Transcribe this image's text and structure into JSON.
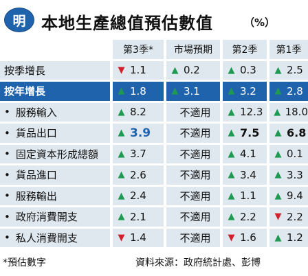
{
  "header": {
    "logo_text": "明",
    "title": "本地生產總值預估數值",
    "unit": "（%）"
  },
  "columns": [
    "第3季*",
    "市場預期",
    "第2季",
    "第1季"
  ],
  "rows": [
    {
      "label": "按季增長",
      "bullet": "",
      "highlight": false,
      "cells": [
        {
          "dir": "down",
          "value": "1.1"
        },
        {
          "dir": "up",
          "value": "0.2"
        },
        {
          "dir": "up",
          "value": "0.3"
        },
        {
          "dir": "up",
          "value": "2.5"
        }
      ]
    },
    {
      "label": "按年增長",
      "bullet": "",
      "highlight": true,
      "cells": [
        {
          "dir": "up",
          "value": "1.8"
        },
        {
          "dir": "up",
          "value": "3.1"
        },
        {
          "dir": "up",
          "value": "3.2"
        },
        {
          "dir": "up",
          "value": "2.8"
        }
      ]
    },
    {
      "label": "服務輸入",
      "bullet": "•",
      "highlight": false,
      "cells": [
        {
          "dir": "up",
          "value": "8.2"
        },
        {
          "dir": "",
          "value": "不適用"
        },
        {
          "dir": "up",
          "value": "12.3"
        },
        {
          "dir": "up",
          "value": "18.0"
        }
      ]
    },
    {
      "label": "貨品出口",
      "bullet": "•",
      "highlight": false,
      "cells": [
        {
          "dir": "up",
          "value": "3.9",
          "style": "blue"
        },
        {
          "dir": "",
          "value": "不適用"
        },
        {
          "dir": "up",
          "value": "7.5",
          "style": "bold"
        },
        {
          "dir": "up",
          "value": "6.8",
          "style": "bold"
        }
      ]
    },
    {
      "label": "固定資本形成總額",
      "bullet": "•",
      "highlight": false,
      "cells": [
        {
          "dir": "up",
          "value": "3.7"
        },
        {
          "dir": "",
          "value": "不適用"
        },
        {
          "dir": "up",
          "value": "4.1"
        },
        {
          "dir": "up",
          "value": "0.1"
        }
      ]
    },
    {
      "label": "貨品進口",
      "bullet": "•",
      "highlight": false,
      "cells": [
        {
          "dir": "up",
          "value": "2.6"
        },
        {
          "dir": "",
          "value": "不適用"
        },
        {
          "dir": "up",
          "value": "3.4"
        },
        {
          "dir": "up",
          "value": "3.3"
        }
      ]
    },
    {
      "label": "服務輸出",
      "bullet": "•",
      "highlight": false,
      "cells": [
        {
          "dir": "up",
          "value": "2.4"
        },
        {
          "dir": "",
          "value": "不適用"
        },
        {
          "dir": "up",
          "value": "1.1"
        },
        {
          "dir": "up",
          "value": "9.4"
        }
      ]
    },
    {
      "label": "政府消費開支",
      "bullet": "•",
      "highlight": false,
      "cells": [
        {
          "dir": "up",
          "value": "2.1"
        },
        {
          "dir": "",
          "value": "不適用"
        },
        {
          "dir": "up",
          "value": "2.2"
        },
        {
          "dir": "down",
          "value": "2.2"
        }
      ]
    },
    {
      "label": "私人消費開支",
      "bullet": "•",
      "highlight": false,
      "cells": [
        {
          "dir": "down",
          "value": "1.4"
        },
        {
          "dir": "",
          "value": "不適用"
        },
        {
          "dir": "down",
          "value": "1.6"
        },
        {
          "dir": "up",
          "value": "1.2"
        }
      ]
    }
  ],
  "arrows": {
    "up": "▲",
    "down": "▼"
  },
  "colors": {
    "header_blue": "#1f63ad",
    "cell_bg": "#dfe8ef",
    "up": "#1f9a52",
    "down": "#d3212c"
  },
  "footer": {
    "footnote": "*預估數字",
    "source": "資料來源：政府統計處、彭博"
  }
}
